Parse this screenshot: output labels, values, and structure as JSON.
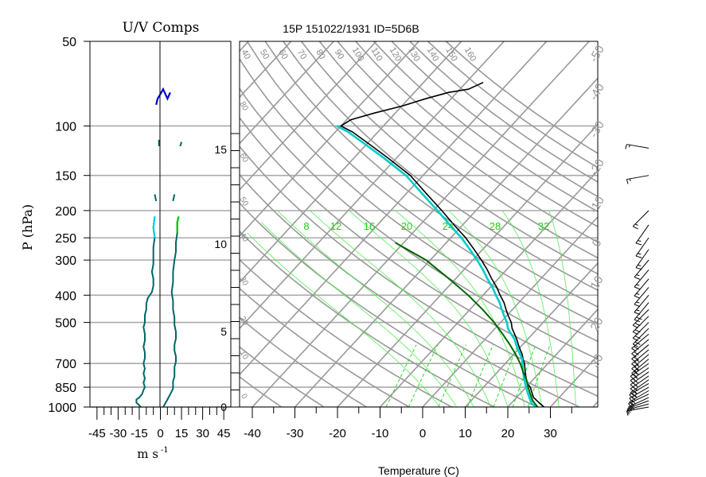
{
  "chart_data": [
    {
      "type": "line",
      "panel": "wind-components",
      "title": "U/V Comps",
      "xlabel": "m s",
      "xlabel_exponent": "-1",
      "ylabel": "P (hPa)",
      "xlim": [
        -50,
        50
      ],
      "x_ticks": [
        "-45",
        "-30",
        "-15",
        "0",
        "15",
        "30",
        "45"
      ],
      "y_scale": "log",
      "ylim": [
        1000,
        50
      ],
      "y_ticks": [
        "50",
        "100",
        "150",
        "200",
        "250",
        "300",
        "400",
        "500",
        "700",
        "850",
        "1000"
      ],
      "gridlines_p": [
        100,
        150,
        200,
        250,
        300,
        400,
        500,
        700,
        850,
        1000
      ],
      "series": [
        {
          "color": "#006666",
          "points": [
            [
              -14,
              1000
            ],
            [
              -15,
              985
            ],
            [
              -17,
              965
            ],
            [
              -17,
              940
            ],
            [
              -15,
              925
            ],
            [
              -13,
              900
            ],
            [
              -12,
              870
            ],
            [
              -11,
              850
            ],
            [
              -12,
              820
            ],
            [
              -11,
              790
            ],
            [
              -12,
              760
            ],
            [
              -11,
              730
            ],
            [
              -12,
              700
            ],
            [
              -11,
              670
            ],
            [
              -11,
              640
            ],
            [
              -12,
              610
            ],
            [
              -11,
              580
            ],
            [
              -11,
              550
            ],
            [
              -12,
              520
            ],
            [
              -11,
              500
            ],
            [
              -11,
              470
            ],
            [
              -10,
              450
            ],
            [
              -10,
              430
            ],
            [
              -9,
              410
            ],
            [
              -6,
              390
            ],
            [
              -5,
              370
            ],
            [
              -5,
              350
            ],
            [
              -6,
              330
            ],
            [
              -5,
              310
            ],
            [
              -5,
              290
            ],
            [
              -5,
              270
            ],
            [
              -4,
              250
            ],
            [
              -5,
              230
            ],
            [
              -4,
              210
            ]
          ]
        },
        {
          "color": "#006666",
          "points": [
            [
              2,
              1000
            ],
            [
              3,
              980
            ],
            [
              4,
              960
            ],
            [
              5,
              940
            ],
            [
              6,
              920
            ],
            [
              7,
              900
            ],
            [
              8,
              880
            ],
            [
              9,
              860
            ],
            [
              9,
              840
            ],
            [
              9,
              810
            ],
            [
              10,
              780
            ],
            [
              10,
              750
            ],
            [
              10,
              720
            ],
            [
              11,
              690
            ],
            [
              11,
              660
            ],
            [
              10,
              630
            ],
            [
              10,
              600
            ],
            [
              11,
              570
            ],
            [
              11,
              540
            ],
            [
              10,
              510
            ],
            [
              10,
              480
            ],
            [
              9,
              450
            ],
            [
              9,
              420
            ],
            [
              8,
              390
            ],
            [
              9,
              360
            ],
            [
              9,
              330
            ],
            [
              10,
              300
            ],
            [
              11,
              280
            ],
            [
              11,
              260
            ],
            [
              12,
              240
            ],
            [
              12,
              220
            ],
            [
              13,
              210
            ]
          ]
        },
        {
          "color": "#00ccff",
          "points": [
            [
              -4,
              250
            ],
            [
              -5,
              230
            ],
            [
              -4,
              210
            ]
          ]
        },
        {
          "color": "#00cc00",
          "points": [
            [
              12,
              240
            ],
            [
              12,
              220
            ],
            [
              13,
              210
            ]
          ]
        },
        {
          "color": "#006666",
          "points": [
            [
              -3,
              185
            ],
            [
              -4,
              175
            ]
          ]
        },
        {
          "color": "#006666",
          "points": [
            [
              9,
              185
            ],
            [
              10,
              175
            ]
          ]
        },
        {
          "color": "#006666",
          "points": [
            [
              -1,
              118
            ],
            [
              -1,
              112
            ]
          ]
        },
        {
          "color": "#006666",
          "points": [
            [
              14,
              118
            ],
            [
              15,
              114
            ]
          ]
        },
        {
          "color": "#0000cc",
          "points": [
            [
              -3,
              84
            ],
            [
              -2,
              80
            ],
            [
              0,
              77
            ],
            [
              2,
              74
            ],
            [
              5,
              80
            ],
            [
              7,
              76
            ]
          ]
        }
      ]
    },
    {
      "type": "line",
      "panel": "skew-t",
      "title": "15P 151022/1931 ID=5D6B",
      "xlabel": "Temperature (C)",
      "x_ticks": [
        "-40",
        "-30",
        "-20",
        "-10",
        "0",
        "10",
        "20",
        "30"
      ],
      "height_ticks": [
        "0",
        "5",
        "10",
        "15"
      ],
      "height_units": "km",
      "dry_adiabat_labels": [
        "-40",
        "-30",
        "-20",
        "-10",
        "0",
        "10",
        "20",
        "30",
        "40",
        "50"
      ],
      "mixing_ratio_labels": [
        "0",
        "0",
        "0",
        "0",
        "0",
        "0",
        "0"
      ],
      "isotherm_labels": [
        "40",
        "50",
        "60",
        "70",
        "80",
        "90",
        "100",
        "110",
        "120",
        "130",
        "140",
        "150",
        "160"
      ],
      "adiabat_labels": [
        "8",
        "12",
        "16",
        "20",
        "24",
        "28",
        "32"
      ],
      "moist_adiabat_colors": {
        "dry": "#999999",
        "moist": "#00ff00"
      },
      "series": [
        {
          "name": "temperature",
          "color": "#000000",
          "points": [
            [
              28.5,
              1000
            ],
            [
              27,
              975
            ],
            [
              25.5,
              950
            ],
            [
              24,
              925
            ],
            [
              23,
              900
            ],
            [
              22,
              875
            ],
            [
              21,
              850
            ],
            [
              19.5,
              825
            ],
            [
              18.5,
              800
            ],
            [
              17.5,
              775
            ],
            [
              16.5,
              750
            ],
            [
              15.5,
              725
            ],
            [
              14.5,
              700
            ],
            [
              13.2,
              675
            ],
            [
              12,
              650
            ],
            [
              10.5,
              625
            ],
            [
              9,
              600
            ],
            [
              7.5,
              575
            ],
            [
              5.8,
              550
            ],
            [
              4,
              525
            ],
            [
              2.5,
              500
            ],
            [
              0.5,
              475
            ],
            [
              -1.5,
              450
            ],
            [
              -3.5,
              425
            ],
            [
              -6,
              400
            ],
            [
              -8.5,
              375
            ],
            [
              -11.5,
              350
            ],
            [
              -14.5,
              325
            ],
            [
              -18,
              300
            ],
            [
              -22,
              275
            ],
            [
              -26.5,
              250
            ],
            [
              -32,
              225
            ],
            [
              -38,
              200
            ],
            [
              -45,
              175
            ],
            [
              -53,
              150
            ],
            [
              -62,
              130
            ],
            [
              -70,
              115
            ],
            [
              -76,
              105
            ],
            [
              -80,
              100
            ],
            [
              -79,
              95
            ],
            [
              -75,
              90
            ],
            [
              -70,
              85
            ],
            [
              -66,
              80
            ],
            [
              -62,
              76
            ],
            [
              -58,
              74
            ],
            [
              -56,
              70
            ]
          ]
        },
        {
          "name": "dewpoint",
          "color": "#00cccc",
          "points": [
            [
              27,
              1000
            ],
            [
              25,
              975
            ],
            [
              24,
              950
            ],
            [
              23,
              925
            ],
            [
              22,
              900
            ],
            [
              21,
              875
            ],
            [
              20,
              850
            ],
            [
              19,
              825
            ],
            [
              18,
              800
            ],
            [
              17,
              775
            ],
            [
              16,
              750
            ],
            [
              15,
              725
            ],
            [
              14,
              700
            ],
            [
              13,
              675
            ],
            [
              11.5,
              650
            ],
            [
              10,
              625
            ],
            [
              8.5,
              600
            ],
            [
              7,
              575
            ],
            [
              5,
              550
            ],
            [
              3,
              525
            ],
            [
              1.5,
              500
            ],
            [
              -0.5,
              475
            ],
            [
              -2.5,
              450
            ],
            [
              -4.5,
              425
            ],
            [
              -7,
              400
            ],
            [
              -9.5,
              375
            ],
            [
              -12.5,
              350
            ],
            [
              -15.5,
              325
            ],
            [
              -19,
              300
            ],
            [
              -23,
              275
            ],
            [
              -27.5,
              250
            ],
            [
              -33,
              225
            ],
            [
              -39,
              200
            ],
            [
              -46,
              175
            ],
            [
              -54,
              150
            ],
            [
              -63,
              130
            ],
            [
              -71,
              115
            ],
            [
              -77,
              105
            ],
            [
              -81,
              100
            ]
          ]
        },
        {
          "name": "parcel",
          "color": "#006600",
          "points": [
            [
              27,
              1000
            ],
            [
              24.5,
              950
            ],
            [
              22.5,
              900
            ],
            [
              20.5,
              850
            ],
            [
              18.5,
              800
            ],
            [
              16,
              750
            ],
            [
              13.5,
              700
            ],
            [
              10.5,
              650
            ],
            [
              7,
              600
            ],
            [
              3,
              550
            ],
            [
              -1.5,
              500
            ],
            [
              -7,
              450
            ],
            [
              -13.5,
              400
            ],
            [
              -21.5,
              350
            ],
            [
              -31,
              300
            ],
            [
              -42,
              260
            ]
          ]
        }
      ]
    }
  ],
  "wind_barbs": [
    {
      "p": 1000,
      "speed_kt": 10,
      "dir_deg": 100
    },
    {
      "p": 975,
      "speed_kt": 15,
      "dir_deg": 105
    },
    {
      "p": 950,
      "speed_kt": 15,
      "dir_deg": 110
    },
    {
      "p": 925,
      "speed_kt": 20,
      "dir_deg": 115
    },
    {
      "p": 900,
      "speed_kt": 20,
      "dir_deg": 115
    },
    {
      "p": 875,
      "speed_kt": 20,
      "dir_deg": 120
    },
    {
      "p": 850,
      "speed_kt": 25,
      "dir_deg": 120
    },
    {
      "p": 825,
      "speed_kt": 25,
      "dir_deg": 120
    },
    {
      "p": 800,
      "speed_kt": 25,
      "dir_deg": 125
    },
    {
      "p": 775,
      "speed_kt": 25,
      "dir_deg": 125
    },
    {
      "p": 750,
      "speed_kt": 25,
      "dir_deg": 125
    },
    {
      "p": 725,
      "speed_kt": 25,
      "dir_deg": 125
    },
    {
      "p": 700,
      "speed_kt": 25,
      "dir_deg": 125
    },
    {
      "p": 675,
      "speed_kt": 25,
      "dir_deg": 130
    },
    {
      "p": 650,
      "speed_kt": 25,
      "dir_deg": 130
    },
    {
      "p": 625,
      "speed_kt": 25,
      "dir_deg": 130
    },
    {
      "p": 600,
      "speed_kt": 20,
      "dir_deg": 130
    },
    {
      "p": 575,
      "speed_kt": 20,
      "dir_deg": 130
    },
    {
      "p": 550,
      "speed_kt": 20,
      "dir_deg": 130
    },
    {
      "p": 525,
      "speed_kt": 20,
      "dir_deg": 135
    },
    {
      "p": 500,
      "speed_kt": 20,
      "dir_deg": 135
    },
    {
      "p": 475,
      "speed_kt": 20,
      "dir_deg": 135
    },
    {
      "p": 450,
      "speed_kt": 20,
      "dir_deg": 135
    },
    {
      "p": 425,
      "speed_kt": 20,
      "dir_deg": 140
    },
    {
      "p": 400,
      "speed_kt": 15,
      "dir_deg": 140
    },
    {
      "p": 375,
      "speed_kt": 15,
      "dir_deg": 140
    },
    {
      "p": 350,
      "speed_kt": 15,
      "dir_deg": 140
    },
    {
      "p": 325,
      "speed_kt": 15,
      "dir_deg": 140
    },
    {
      "p": 300,
      "speed_kt": 15,
      "dir_deg": 140
    },
    {
      "p": 275,
      "speed_kt": 15,
      "dir_deg": 145
    },
    {
      "p": 250,
      "speed_kt": 15,
      "dir_deg": 145
    },
    {
      "p": 225,
      "speed_kt": 15,
      "dir_deg": 145
    },
    {
      "p": 200,
      "speed_kt": 15,
      "dir_deg": 135
    },
    {
      "p": 150,
      "speed_kt": 15,
      "dir_deg": 100
    },
    {
      "p": 120,
      "speed_kt": 15,
      "dir_deg": 80
    }
  ]
}
